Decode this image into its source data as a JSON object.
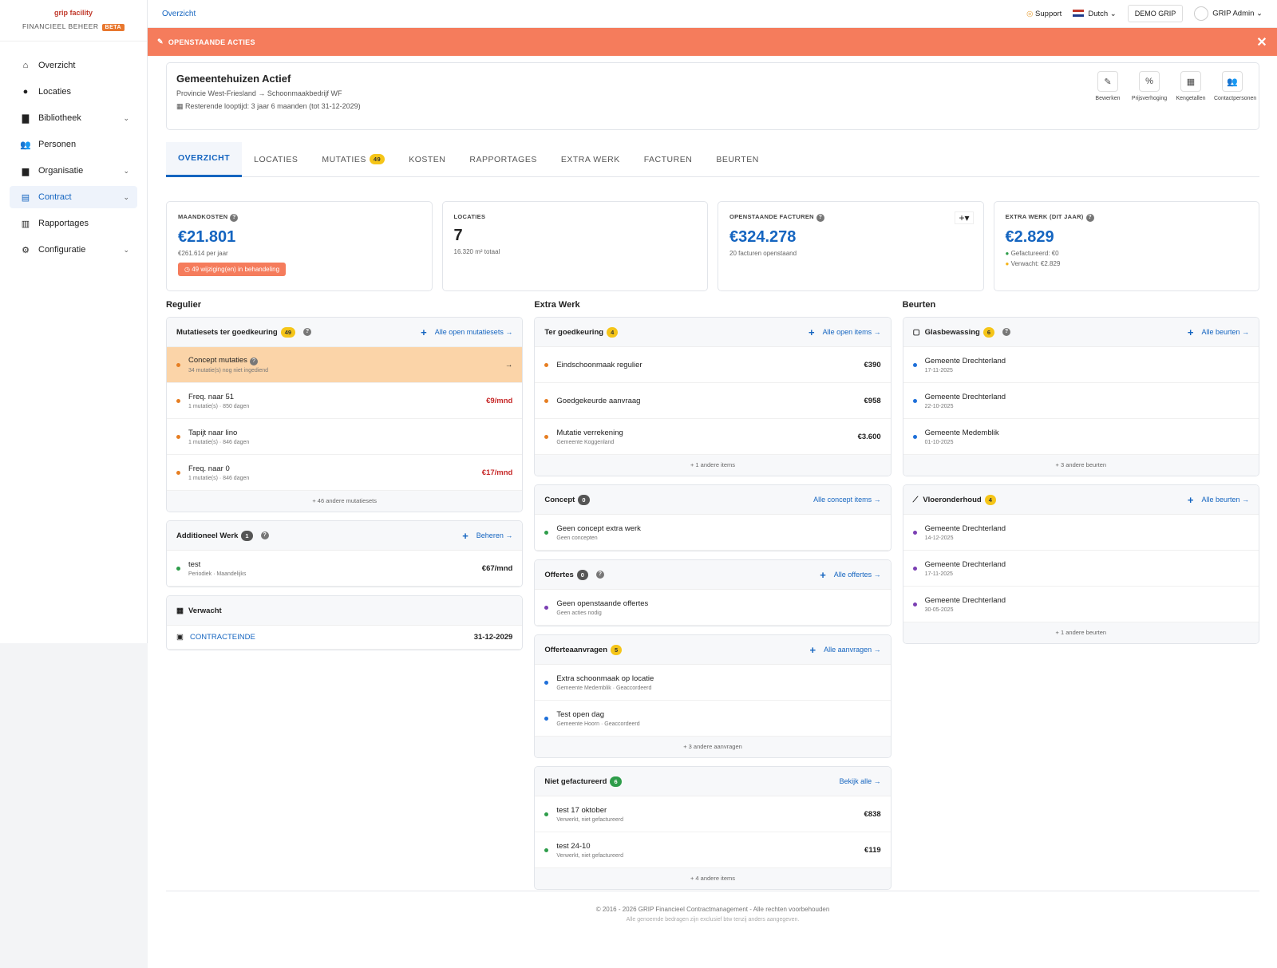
{
  "app": {
    "logo_text": "grip facility",
    "subtitle": "FINANCIEEL BEHEER",
    "beta": "BETA"
  },
  "nav": [
    {
      "label": "Overzicht",
      "icon": "home-icon",
      "glyph": "⌂",
      "chev": ""
    },
    {
      "label": "Locaties",
      "icon": "location-pin-icon",
      "glyph": "●",
      "chev": ""
    },
    {
      "label": "Bibliotheek",
      "icon": "book-icon",
      "glyph": "▇",
      "chev": "⌄"
    },
    {
      "label": "Personen",
      "icon": "people-icon",
      "glyph": "👥",
      "chev": ""
    },
    {
      "label": "Organisatie",
      "icon": "building-icon",
      "glyph": "▆",
      "chev": "⌄"
    },
    {
      "label": "Contract",
      "icon": "document-icon",
      "glyph": "▤",
      "chev": "⌄"
    },
    {
      "label": "Rapportages",
      "icon": "chart-icon",
      "glyph": "▥",
      "chev": ""
    },
    {
      "label": "Configuratie",
      "icon": "gear-icon",
      "glyph": "⚙",
      "chev": "⌄"
    }
  ],
  "topbar": {
    "breadcrumb": "Overzicht",
    "support": "Support",
    "language": "Dutch",
    "org": "DEMO GRIP",
    "user": "GRIP Admin"
  },
  "banner": {
    "label": "OPENSTAANDE ACTIES"
  },
  "header": {
    "title": "Gemeentehuizen  Actief",
    "path_from": "Provincie West-Friesland",
    "path_to": "Schoonmaakbedrijf WF",
    "runtime": "Resterende looptijd: 3 jaar 6 maanden (tot 31-12-2029)",
    "actions": [
      {
        "label": "Bewerken",
        "glyph": "✎"
      },
      {
        "label": "Prijsverhoging",
        "glyph": "%"
      },
      {
        "label": "Kengetallen",
        "glyph": "▦"
      },
      {
        "label": "Contactpersonen",
        "glyph": "👥"
      }
    ]
  },
  "tabs": [
    {
      "label": "OVERZICHT"
    },
    {
      "label": "LOCATIES"
    },
    {
      "label": "MUTATIES",
      "badge": "49"
    },
    {
      "label": "KOSTEN"
    },
    {
      "label": "RAPPORTAGES"
    },
    {
      "label": "EXTRA WERK"
    },
    {
      "label": "FACTUREN"
    },
    {
      "label": "BEURTEN"
    }
  ],
  "stats": {
    "maandkosten": {
      "label": "MAANDKOSTEN",
      "value": "€21.801",
      "sub": "€261.614 per jaar",
      "warn": "49 wijziging(en) in behandeling"
    },
    "locaties": {
      "label": "LOCATIES",
      "value": "7",
      "sub": "16.320 m² totaal"
    },
    "facturen": {
      "label": "OPENSTAANDE FACTUREN",
      "value": "€324.278",
      "sub": "20 facturen openstaand"
    },
    "extra": {
      "label": "EXTRA WERK (DIT JAAR)",
      "value": "€2.829",
      "sub1": "Gefactureerd: €0",
      "sub2": "Verwacht: €2.829"
    }
  },
  "regulier": {
    "title": "Regulier",
    "mutaties": {
      "title": "Mutatiesets ter goedkeuring",
      "badge": "49",
      "link": "Alle open mutatiesets →",
      "concept": {
        "title": "Concept mutaties",
        "sub": "34 mutatie(s) nog niet ingediend"
      },
      "rows": [
        {
          "title": "Freq. naar 51",
          "sub": "1 mutatie(s) · 850 dagen",
          "amt": "€9/mnd"
        },
        {
          "title": "Tapijt naar lino",
          "sub": "1 mutatie(s) · 846 dagen",
          "amt": ""
        },
        {
          "title": "Freq. naar 0",
          "sub": "1 mutatie(s) · 846 dagen",
          "amt": "€17/mnd"
        }
      ],
      "more": "+ 46 andere mutatiesets"
    },
    "additioneel": {
      "title": "Additioneel Werk",
      "badge": "1",
      "link": "Beheren →",
      "row": {
        "title": "test",
        "sub": "Periodiek · Maandelijks",
        "amt": "€67/mnd"
      }
    },
    "verwacht": {
      "title": "Verwacht",
      "label": "CONTRACTEINDE",
      "date": "31-12-2029"
    }
  },
  "extrawerk": {
    "title": "Extra Werk",
    "goedkeuring": {
      "title": "Ter goedkeuring",
      "badge": "4",
      "link": "Alle open items →",
      "rows": [
        {
          "title": "Eindschoonmaak regulier",
          "sub": "",
          "amt": "€390"
        },
        {
          "title": "Goedgekeurde aanvraag",
          "sub": "",
          "amt": "€958"
        },
        {
          "title": "Mutatie verrekening",
          "sub": "Gemeente Koggenland",
          "amt": "€3.600"
        }
      ],
      "more": "+ 1 andere items"
    },
    "concept": {
      "title": "Concept",
      "badge": "0",
      "link": "Alle concept items →",
      "row": {
        "title": "Geen concept extra werk",
        "sub": "Geen concepten"
      }
    },
    "offertes": {
      "title": "Offertes",
      "badge": "0",
      "link": "Alle offertes →",
      "row": {
        "title": "Geen openstaande offertes",
        "sub": "Geen acties nodig"
      }
    },
    "aanvragen": {
      "title": "Offerteaanvragen",
      "badge": "5",
      "link": "Alle aanvragen →",
      "rows": [
        {
          "title": "Extra schoonmaak op locatie",
          "sub": "Gemeente Medemblik · Geaccordeerd"
        },
        {
          "title": "Test open dag",
          "sub": "Gemeente Hoorn · Geaccordeerd"
        }
      ],
      "more": "+ 3 andere aanvragen"
    },
    "niet": {
      "title": "Niet gefactureerd",
      "badge": "6",
      "link": "Bekijk alle →",
      "rows": [
        {
          "title": "test 17 oktober",
          "sub": "Verwerkt, niet gefactureerd",
          "amt": "€838"
        },
        {
          "title": "test 24-10",
          "sub": "Verwerkt, niet gefactureerd",
          "amt": "€119"
        }
      ],
      "more": "+ 4 andere items"
    }
  },
  "beurten": {
    "title": "Beurten",
    "glas": {
      "title": "Glasbewassing",
      "badge": "6",
      "link": "Alle beurten →",
      "rows": [
        {
          "title": "Gemeente Drechterland",
          "sub": "17-11-2025"
        },
        {
          "title": "Gemeente Drechterland",
          "sub": "22-10-2025"
        },
        {
          "title": "Gemeente Medemblik",
          "sub": "01-10-2025"
        }
      ],
      "more": "+ 3 andere beurten"
    },
    "vloer": {
      "title": "Vloeronderhoud",
      "badge": "4",
      "link": "Alle beurten →",
      "rows": [
        {
          "title": "Gemeente Drechterland",
          "sub": "14-12-2025"
        },
        {
          "title": "Gemeente Drechterland",
          "sub": "17-11-2025"
        },
        {
          "title": "Gemeente Drechterland",
          "sub": "30-05-2025"
        }
      ],
      "more": "+ 1 andere beurten"
    }
  },
  "footer": {
    "line1": "© 2016 - 2026 GRIP Financieel Contractmanagement - Alle rechten voorbehouden",
    "line2": "Alle genoemde bedragen zijn exclusief btw tenzij anders aangegeven."
  }
}
